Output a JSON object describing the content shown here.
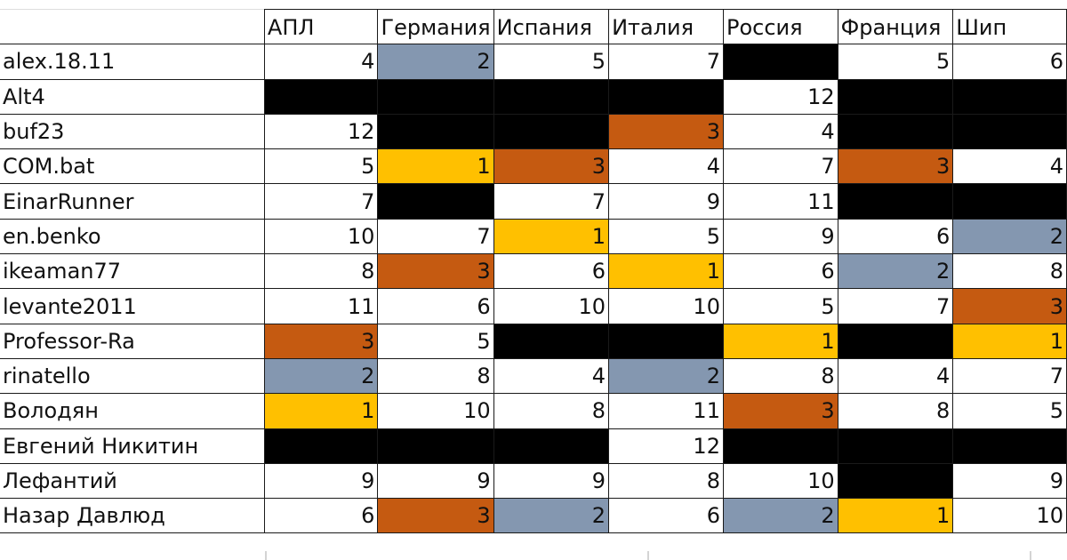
{
  "columns": [
    "АПЛ",
    "Германия",
    "Испания",
    "Италия",
    "Россия",
    "Франция",
    "Шип"
  ],
  "rows": [
    {
      "name": "alex.18.11",
      "cells": [
        {
          "v": "4",
          "s": "none"
        },
        {
          "v": "2",
          "s": "silver"
        },
        {
          "v": "5",
          "s": "none"
        },
        {
          "v": "7",
          "s": "none"
        },
        {
          "v": "",
          "s": "black"
        },
        {
          "v": "5",
          "s": "none"
        },
        {
          "v": "6",
          "s": "none"
        }
      ]
    },
    {
      "name": "Alt4",
      "cells": [
        {
          "v": "",
          "s": "black"
        },
        {
          "v": "",
          "s": "black"
        },
        {
          "v": "",
          "s": "black"
        },
        {
          "v": "",
          "s": "black"
        },
        {
          "v": "12",
          "s": "none"
        },
        {
          "v": "",
          "s": "black"
        },
        {
          "v": "",
          "s": "black"
        }
      ]
    },
    {
      "name": "buf23",
      "cells": [
        {
          "v": "12",
          "s": "none"
        },
        {
          "v": "",
          "s": "black"
        },
        {
          "v": "",
          "s": "black"
        },
        {
          "v": "3",
          "s": "bronze"
        },
        {
          "v": "4",
          "s": "none"
        },
        {
          "v": "",
          "s": "black"
        },
        {
          "v": "",
          "s": "black"
        }
      ]
    },
    {
      "name": "COM.bat",
      "cells": [
        {
          "v": "5",
          "s": "none"
        },
        {
          "v": "1",
          "s": "gold"
        },
        {
          "v": "3",
          "s": "bronze"
        },
        {
          "v": "4",
          "s": "none"
        },
        {
          "v": "7",
          "s": "none"
        },
        {
          "v": "3",
          "s": "bronze"
        },
        {
          "v": "4",
          "s": "none"
        }
      ]
    },
    {
      "name": "EinarRunner",
      "cells": [
        {
          "v": "7",
          "s": "none"
        },
        {
          "v": "",
          "s": "black"
        },
        {
          "v": "7",
          "s": "none"
        },
        {
          "v": "9",
          "s": "none"
        },
        {
          "v": "11",
          "s": "none"
        },
        {
          "v": "",
          "s": "black"
        },
        {
          "v": "",
          "s": "black"
        }
      ]
    },
    {
      "name": "en.benko",
      "cells": [
        {
          "v": "10",
          "s": "none"
        },
        {
          "v": "7",
          "s": "none"
        },
        {
          "v": "1",
          "s": "gold"
        },
        {
          "v": "5",
          "s": "none"
        },
        {
          "v": "9",
          "s": "none"
        },
        {
          "v": "6",
          "s": "none"
        },
        {
          "v": "2",
          "s": "silver"
        }
      ]
    },
    {
      "name": "ikeaman77",
      "cells": [
        {
          "v": "8",
          "s": "none"
        },
        {
          "v": "3",
          "s": "bronze"
        },
        {
          "v": "6",
          "s": "none"
        },
        {
          "v": "1",
          "s": "gold"
        },
        {
          "v": "6",
          "s": "none"
        },
        {
          "v": "2",
          "s": "silver"
        },
        {
          "v": "8",
          "s": "none"
        }
      ]
    },
    {
      "name": "levante2011",
      "cells": [
        {
          "v": "11",
          "s": "none"
        },
        {
          "v": "6",
          "s": "none"
        },
        {
          "v": "10",
          "s": "none"
        },
        {
          "v": "10",
          "s": "none"
        },
        {
          "v": "5",
          "s": "none"
        },
        {
          "v": "7",
          "s": "none"
        },
        {
          "v": "3",
          "s": "bronze"
        }
      ]
    },
    {
      "name": "Professor-Ra",
      "cells": [
        {
          "v": "3",
          "s": "bronze"
        },
        {
          "v": "5",
          "s": "none"
        },
        {
          "v": "",
          "s": "black"
        },
        {
          "v": "",
          "s": "black"
        },
        {
          "v": "1",
          "s": "gold"
        },
        {
          "v": "",
          "s": "black"
        },
        {
          "v": "1",
          "s": "gold"
        }
      ]
    },
    {
      "name": "rinatello",
      "cells": [
        {
          "v": "2",
          "s": "silver"
        },
        {
          "v": "8",
          "s": "none"
        },
        {
          "v": "4",
          "s": "none"
        },
        {
          "v": "2",
          "s": "silver"
        },
        {
          "v": "8",
          "s": "none"
        },
        {
          "v": "4",
          "s": "none"
        },
        {
          "v": "7",
          "s": "none"
        }
      ]
    },
    {
      "name": "Володян",
      "cells": [
        {
          "v": "1",
          "s": "gold"
        },
        {
          "v": "10",
          "s": "none"
        },
        {
          "v": "8",
          "s": "none"
        },
        {
          "v": "11",
          "s": "none"
        },
        {
          "v": "3",
          "s": "bronze"
        },
        {
          "v": "8",
          "s": "none"
        },
        {
          "v": "5",
          "s": "none"
        }
      ]
    },
    {
      "name": "Евгений Никитин",
      "cells": [
        {
          "v": "",
          "s": "black"
        },
        {
          "v": "",
          "s": "black"
        },
        {
          "v": "",
          "s": "black"
        },
        {
          "v": "12",
          "s": "none"
        },
        {
          "v": "",
          "s": "black"
        },
        {
          "v": "",
          "s": "black"
        },
        {
          "v": "",
          "s": "black"
        }
      ]
    },
    {
      "name": "Лефантий",
      "cells": [
        {
          "v": "9",
          "s": "none"
        },
        {
          "v": "9",
          "s": "none"
        },
        {
          "v": "9",
          "s": "none"
        },
        {
          "v": "8",
          "s": "none"
        },
        {
          "v": "10",
          "s": "none"
        },
        {
          "v": "",
          "s": "black"
        },
        {
          "v": "9",
          "s": "none"
        }
      ]
    },
    {
      "name": "Назар Давлюд",
      "cells": [
        {
          "v": "6",
          "s": "none"
        },
        {
          "v": "3",
          "s": "bronze"
        },
        {
          "v": "2",
          "s": "silver"
        },
        {
          "v": "6",
          "s": "none"
        },
        {
          "v": "2",
          "s": "silver"
        },
        {
          "v": "1",
          "s": "gold"
        },
        {
          "v": "10",
          "s": "none"
        }
      ]
    }
  ],
  "colors": {
    "black": "#000000",
    "gold": "#ffc000",
    "bronze": "#c55a11",
    "silver": "#8497b0",
    "none": "#ffffff"
  }
}
